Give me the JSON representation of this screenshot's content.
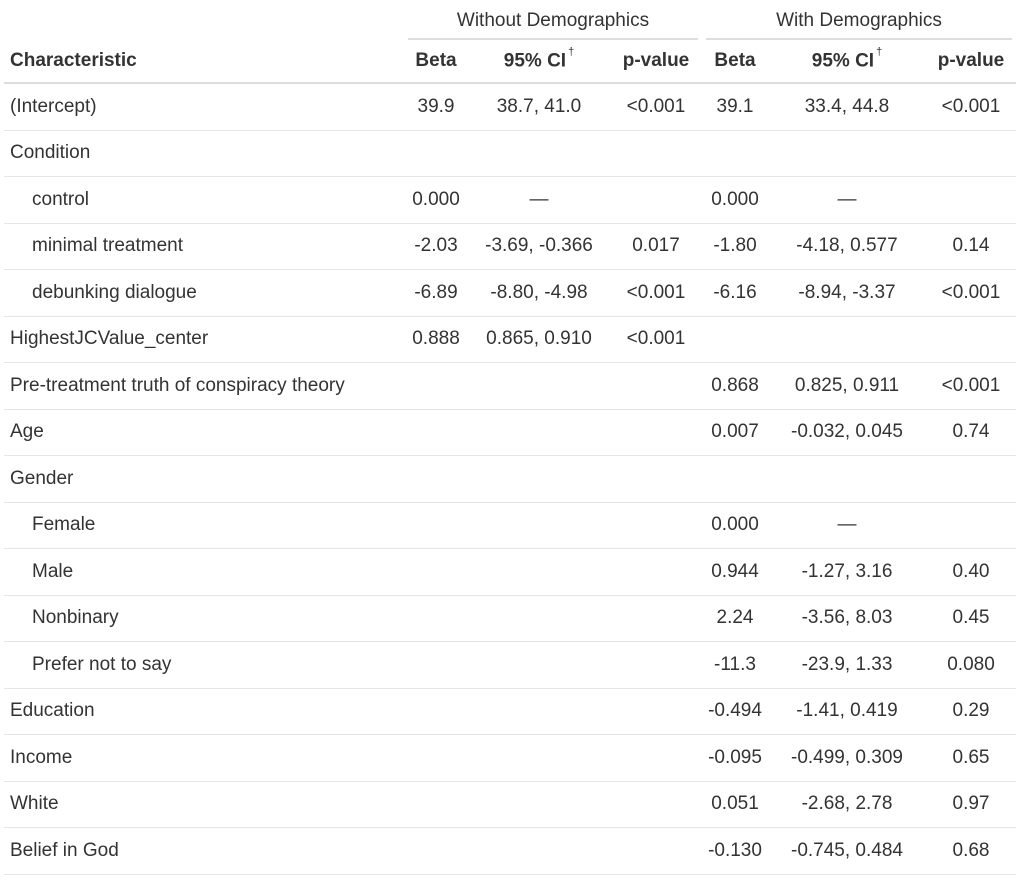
{
  "table": {
    "spanners": {
      "without": "Without Demographics",
      "with": "With Demographics"
    },
    "headers": {
      "characteristic": "Characteristic",
      "beta": "Beta",
      "ci": "95% CI",
      "ci_footnote_mark": "†",
      "pvalue": "p-value"
    },
    "rows": [
      {
        "label": "(Intercept)",
        "indent": false,
        "wo_beta": "39.9",
        "wo_ci": "38.7, 41.0",
        "wo_p": "<0.001",
        "w_beta": "39.1",
        "w_ci": "33.4, 44.8",
        "w_p": "<0.001"
      },
      {
        "label": "Condition",
        "indent": false,
        "wo_beta": "",
        "wo_ci": "",
        "wo_p": "",
        "w_beta": "",
        "w_ci": "",
        "w_p": ""
      },
      {
        "label": "control",
        "indent": true,
        "wo_beta": "0.000",
        "wo_ci": "—",
        "wo_p": "",
        "w_beta": "0.000",
        "w_ci": "—",
        "w_p": ""
      },
      {
        "label": "minimal treatment",
        "indent": true,
        "wo_beta": "-2.03",
        "wo_ci": "-3.69, -0.366",
        "wo_p": "0.017",
        "w_beta": "-1.80",
        "w_ci": "-4.18, 0.577",
        "w_p": "0.14"
      },
      {
        "label": "debunking dialogue",
        "indent": true,
        "wo_beta": "-6.89",
        "wo_ci": "-8.80, -4.98",
        "wo_p": "<0.001",
        "w_beta": "-6.16",
        "w_ci": "-8.94, -3.37",
        "w_p": "<0.001"
      },
      {
        "label": "HighestJCValue_center",
        "indent": false,
        "wo_beta": "0.888",
        "wo_ci": "0.865, 0.910",
        "wo_p": "<0.001",
        "w_beta": "",
        "w_ci": "",
        "w_p": ""
      },
      {
        "label": "Pre-treatment truth of conspiracy theory",
        "indent": false,
        "wo_beta": "",
        "wo_ci": "",
        "wo_p": "",
        "w_beta": "0.868",
        "w_ci": "0.825, 0.911",
        "w_p": "<0.001"
      },
      {
        "label": "Age",
        "indent": false,
        "wo_beta": "",
        "wo_ci": "",
        "wo_p": "",
        "w_beta": "0.007",
        "w_ci": "-0.032, 0.045",
        "w_p": "0.74"
      },
      {
        "label": "Gender",
        "indent": false,
        "wo_beta": "",
        "wo_ci": "",
        "wo_p": "",
        "w_beta": "",
        "w_ci": "",
        "w_p": ""
      },
      {
        "label": "Female",
        "indent": true,
        "wo_beta": "",
        "wo_ci": "",
        "wo_p": "",
        "w_beta": "0.000",
        "w_ci": "—",
        "w_p": ""
      },
      {
        "label": "Male",
        "indent": true,
        "wo_beta": "",
        "wo_ci": "",
        "wo_p": "",
        "w_beta": "0.944",
        "w_ci": "-1.27, 3.16",
        "w_p": "0.40"
      },
      {
        "label": "Nonbinary",
        "indent": true,
        "wo_beta": "",
        "wo_ci": "",
        "wo_p": "",
        "w_beta": "2.24",
        "w_ci": "-3.56, 8.03",
        "w_p": "0.45"
      },
      {
        "label": "Prefer not to say",
        "indent": true,
        "wo_beta": "",
        "wo_ci": "",
        "wo_p": "",
        "w_beta": "-11.3",
        "w_ci": "-23.9, 1.33",
        "w_p": "0.080"
      },
      {
        "label": "Education",
        "indent": false,
        "wo_beta": "",
        "wo_ci": "",
        "wo_p": "",
        "w_beta": "-0.494",
        "w_ci": "-1.41, 0.419",
        "w_p": "0.29"
      },
      {
        "label": "Income",
        "indent": false,
        "wo_beta": "",
        "wo_ci": "",
        "wo_p": "",
        "w_beta": "-0.095",
        "w_ci": "-0.499, 0.309",
        "w_p": "0.65"
      },
      {
        "label": "White",
        "indent": false,
        "wo_beta": "",
        "wo_ci": "",
        "wo_p": "",
        "w_beta": "0.051",
        "w_ci": "-2.68, 2.78",
        "w_p": "0.97"
      },
      {
        "label": "Belief in God",
        "indent": false,
        "wo_beta": "",
        "wo_ci": "",
        "wo_p": "",
        "w_beta": "-0.130",
        "w_ci": "-0.745, 0.484",
        "w_p": "0.68"
      }
    ]
  }
}
